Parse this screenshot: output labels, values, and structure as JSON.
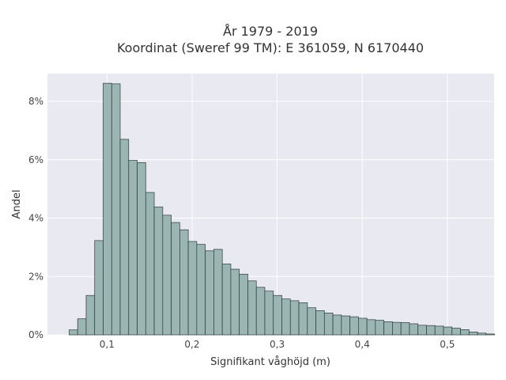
{
  "chart_data": {
    "type": "bar",
    "title": "År 1979 - 2019",
    "subtitle": "Koordinat (Sweref 99 TM): E 361059, N 6170440",
    "xlabel": "Signifikant våghöjd (m)",
    "ylabel": "Andel",
    "xlim": [
      0.03,
      0.555
    ],
    "ylim": [
      0,
      0.0895
    ],
    "x_ticks": [
      {
        "value": 0.1,
        "label": "0,1"
      },
      {
        "value": 0.2,
        "label": "0,2"
      },
      {
        "value": 0.3,
        "label": "0,3"
      },
      {
        "value": 0.4,
        "label": "0,4"
      },
      {
        "value": 0.5,
        "label": "0,5"
      }
    ],
    "y_ticks": [
      {
        "value": 0,
        "label": "0%"
      },
      {
        "value": 0.02,
        "label": "2%"
      },
      {
        "value": 0.04,
        "label": "4%"
      },
      {
        "value": 0.06,
        "label": "6%"
      },
      {
        "value": 0.08,
        "label": "8%"
      }
    ],
    "grid": true,
    "bin_start": 0.0555,
    "bin_width": 0.01,
    "values": [
      0.0017,
      0.0055,
      0.0135,
      0.0323,
      0.0862,
      0.086,
      0.067,
      0.0598,
      0.059,
      0.0488,
      0.0438,
      0.041,
      0.0385,
      0.036,
      0.032,
      0.031,
      0.0288,
      0.0293,
      0.0243,
      0.0225,
      0.0208,
      0.0185,
      0.0163,
      0.015,
      0.0135,
      0.0123,
      0.0117,
      0.011,
      0.0093,
      0.0083,
      0.0075,
      0.0068,
      0.0065,
      0.0062,
      0.0057,
      0.0052,
      0.005,
      0.0045,
      0.0043,
      0.0042,
      0.0038,
      0.0033,
      0.0032,
      0.003,
      0.0027,
      0.0023,
      0.0018,
      0.001,
      0.0006,
      0.0003
    ],
    "colors": {
      "plot_bg": "#e9e9f1",
      "bar_fill": "#9bb5b3",
      "bar_stroke": "#2b3a39",
      "grid": "#ffffff"
    }
  }
}
